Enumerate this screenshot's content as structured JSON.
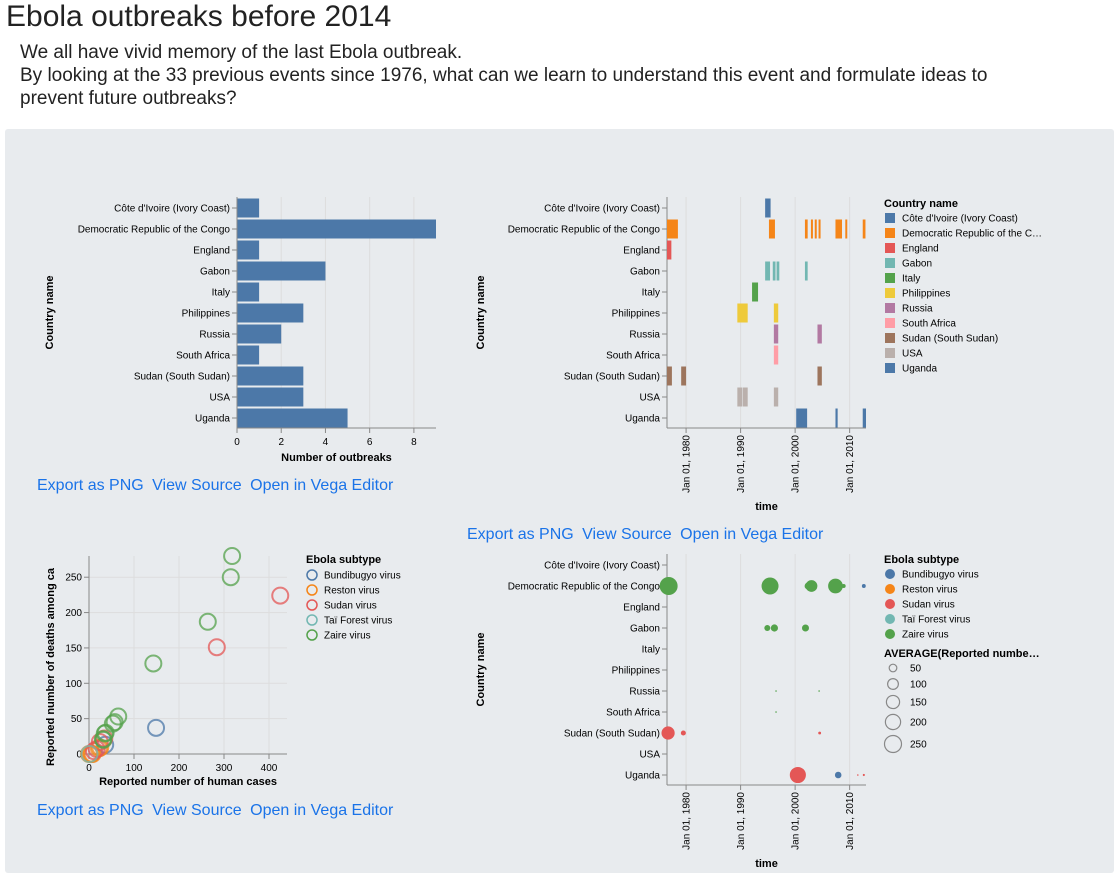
{
  "page": {
    "title": "Ebola outbreaks before 2014",
    "intro": [
      "We all have vivid memory of the last Ebola outbreak.",
      "By looking at the 33 previous events since 1976, what can we learn to understand this event and formulate ideas to",
      "prevent future outbreaks?"
    ]
  },
  "links": {
    "png": "Export as PNG",
    "source": "View Source",
    "editor": "Open in Vega Editor"
  },
  "colors": {
    "bar": "#4c78a8",
    "country": {
      "Côte d'Ivoire (Ivory Coast)": "#4c78a8",
      "Democratic Republic of the Congo": "#f58518",
      "England": "#e45756",
      "Gabon": "#72b7b2",
      "Italy": "#54a24b",
      "Philippines": "#eeca3b",
      "Russia": "#b279a2",
      "South Africa": "#ff9da6",
      "Sudan (South Sudan)": "#9d755d",
      "USA": "#bab0ac",
      "Uganda": "#4c78a8"
    },
    "subtype": {
      "Bundibugyo virus": "#4c78a8",
      "Reston virus": "#f58518",
      "Sudan virus": "#e45756",
      "Taï Forest virus": "#72b7b2",
      "Zaire virus": "#54a24b"
    }
  },
  "chart_data": [
    {
      "type": "bar",
      "orientation": "horizontal",
      "categories": [
        "Côte d'Ivoire (Ivory Coast)",
        "Democratic Republic of the Congo",
        "England",
        "Gabon",
        "Italy",
        "Philippines",
        "Russia",
        "South Africa",
        "Sudan (South Sudan)",
        "USA",
        "Uganda"
      ],
      "values": [
        1,
        9,
        1,
        4,
        1,
        3,
        2,
        1,
        3,
        3,
        5
      ],
      "xlabel": "Number of outbreaks",
      "ylabel": "Country name",
      "xticks": [
        "0",
        "2",
        "4",
        "6",
        "8"
      ],
      "xlim": [
        0,
        9
      ]
    },
    {
      "type": "bar",
      "subtype": "timeline",
      "categories": [
        "Côte d'Ivoire (Ivory Coast)",
        "Democratic Republic of the Congo",
        "England",
        "Gabon",
        "Italy",
        "Philippines",
        "Russia",
        "South Africa",
        "Sudan (South Sudan)",
        "USA",
        "Uganda"
      ],
      "xlim": [
        1976.5,
        2013.0
      ],
      "xticks": [
        {
          "label": "Jan 01, 1980",
          "value": 1980
        },
        {
          "label": "Jan 01, 1990",
          "value": 1990
        },
        {
          "label": "Jan 01, 2000",
          "value": 2000
        },
        {
          "label": "Jan 01, 2010",
          "value": 2010
        }
      ],
      "xlabel": "time",
      "ylabel": "Country name",
      "legend_title": "Country name",
      "legend_labels": [
        "Côte d'Ivoire (Ivory Coast)",
        "Democratic Republic of the C…",
        "England",
        "Gabon",
        "Italy",
        "Philippines",
        "Russia",
        "South Africa",
        "Sudan (South Sudan)",
        "USA",
        "Uganda"
      ],
      "legend_position": "right",
      "events": [
        {
          "country": "Côte d'Ivoire (Ivory Coast)",
          "start": 1994.5,
          "end": 1995.5
        },
        {
          "country": "Democratic Republic of the Congo",
          "start": 1976.5,
          "end": 1978.5
        },
        {
          "country": "Democratic Republic of the Congo",
          "start": 1995.2,
          "end": 1996.3
        },
        {
          "country": "Democratic Republic of the Congo",
          "start": 2001.8,
          "end": 2002.3
        },
        {
          "country": "Democratic Republic of the Congo",
          "start": 2002.9,
          "end": 2003.2
        },
        {
          "country": "Democratic Republic of the Congo",
          "start": 2003.6,
          "end": 2003.9
        },
        {
          "country": "Democratic Republic of the Congo",
          "start": 2004.3,
          "end": 2004.6
        },
        {
          "country": "Democratic Republic of the Congo",
          "start": 2007.4,
          "end": 2008.6
        },
        {
          "country": "Democratic Republic of the Congo",
          "start": 2009.2,
          "end": 2009.5
        },
        {
          "country": "Democratic Republic of the Congo",
          "start": 2012.4,
          "end": 2012.9
        },
        {
          "country": "England",
          "start": 1976.5,
          "end": 1977.3
        },
        {
          "country": "Gabon",
          "start": 1994.5,
          "end": 1995.4
        },
        {
          "country": "Gabon",
          "start": 1995.9,
          "end": 1996.4
        },
        {
          "country": "Gabon",
          "start": 1996.6,
          "end": 1997.1
        },
        {
          "country": "Gabon",
          "start": 2001.8,
          "end": 2002.3
        },
        {
          "country": "Italy",
          "start": 1992.1,
          "end": 1993.2
        },
        {
          "country": "Philippines",
          "start": 1989.4,
          "end": 1991.3
        },
        {
          "country": "Philippines",
          "start": 1996.1,
          "end": 1996.9
        },
        {
          "country": "Russia",
          "start": 1996.1,
          "end": 1996.9
        },
        {
          "country": "Russia",
          "start": 2004.1,
          "end": 2004.9
        },
        {
          "country": "South Africa",
          "start": 1996.1,
          "end": 1996.9
        },
        {
          "country": "Sudan (South Sudan)",
          "start": 1976.5,
          "end": 1977.4
        },
        {
          "country": "Sudan (South Sudan)",
          "start": 1979.1,
          "end": 1980.0
        },
        {
          "country": "Sudan (South Sudan)",
          "start": 2004.1,
          "end": 2004.9
        },
        {
          "country": "USA",
          "start": 1989.4,
          "end": 1990.3
        },
        {
          "country": "USA",
          "start": 1990.4,
          "end": 1991.3
        },
        {
          "country": "USA",
          "start": 1996.1,
          "end": 1996.9
        },
        {
          "country": "Uganda",
          "start": 2000.2,
          "end": 2002.2
        },
        {
          "country": "Uganda",
          "start": 2007.4,
          "end": 2007.8
        },
        {
          "country": "Uganda",
          "start": 2012.4,
          "end": 2013.0
        }
      ]
    },
    {
      "type": "scatter",
      "xlabel": "Reported number of human cases",
      "ylabel": "Reported number of deaths among ca",
      "xlim": [
        0,
        440
      ],
      "ylim": [
        0,
        280
      ],
      "xticks": [
        "0",
        "100",
        "200",
        "300",
        "400"
      ],
      "yticks": [
        "0",
        "50",
        "100",
        "150",
        "200",
        "250"
      ],
      "legend_title": "Ebola subtype",
      "legend_position": "right",
      "series": [
        {
          "name": "Bundibugyo virus",
          "points": [
            [
              149,
              37
            ],
            [
              36,
              13
            ]
          ]
        },
        {
          "name": "Reston virus",
          "points": [
            [
              0,
              0
            ],
            [
              4,
              0
            ],
            [
              6,
              0
            ],
            [
              8,
              0
            ],
            [
              22,
              8
            ],
            [
              25,
              9
            ]
          ]
        },
        {
          "name": "Sudan virus",
          "points": [
            [
              425,
              224
            ],
            [
              284,
              151
            ],
            [
              34,
              22
            ],
            [
              17,
              7
            ],
            [
              24,
              17
            ],
            [
              11,
              4
            ]
          ]
        },
        {
          "name": "Taï Forest virus",
          "points": [
            [
              1,
              0
            ]
          ]
        },
        {
          "name": "Zaire virus",
          "points": [
            [
              318,
              280
            ],
            [
              315,
              250
            ],
            [
              264,
              187
            ],
            [
              143,
              128
            ],
            [
              65,
              53
            ],
            [
              57,
              45
            ],
            [
              53,
              43
            ],
            [
              37,
              30
            ],
            [
              35,
              29
            ],
            [
              32,
              20
            ],
            [
              31,
              21
            ]
          ]
        }
      ]
    },
    {
      "type": "scatter",
      "subtype": "bubble-timeline",
      "categories": [
        "Côte d'Ivoire (Ivory Coast)",
        "Democratic Republic of the Congo",
        "England",
        "Gabon",
        "Italy",
        "Philippines",
        "Russia",
        "South Africa",
        "Sudan (South Sudan)",
        "USA",
        "Uganda"
      ],
      "xlim": [
        1976.5,
        2013.0
      ],
      "xticks": [
        {
          "label": "Jan 01, 1980",
          "value": 1980
        },
        {
          "label": "Jan 01, 1990",
          "value": 1990
        },
        {
          "label": "Jan 01, 2000",
          "value": 2000
        },
        {
          "label": "Jan 01, 2010",
          "value": 2010
        }
      ],
      "xlabel": "time",
      "ylabel": "Country name",
      "legend_title": "Ebola subtype",
      "legend_labels": [
        "Bundibugyo virus",
        "Reston virus",
        "Sudan virus",
        "Taï Forest virus",
        "Zaire virus"
      ],
      "size_legend_title": "AVERAGE(Reported numbe…",
      "size_legend_values": [
        50,
        100,
        150,
        200,
        250
      ],
      "legend_position": "right",
      "points": [
        {
          "country": "Democratic Republic of the Congo",
          "time": 1976.8,
          "subtype": "Zaire virus",
          "value": 280
        },
        {
          "country": "Democratic Republic of the Congo",
          "time": 1995.4,
          "subtype": "Zaire virus",
          "value": 250
        },
        {
          "country": "Democratic Republic of the Congo",
          "time": 2002.4,
          "subtype": "Zaire virus",
          "value": 45
        },
        {
          "country": "Democratic Republic of the Congo",
          "time": 2003.0,
          "subtype": "Zaire virus",
          "value": 120
        },
        {
          "country": "Democratic Republic of the Congo",
          "time": 2003.4,
          "subtype": "Zaire virus",
          "value": 30
        },
        {
          "country": "Democratic Republic of the Congo",
          "time": 2007.4,
          "subtype": "Zaire virus",
          "value": 187
        },
        {
          "country": "Democratic Republic of the Congo",
          "time": 2008.9,
          "subtype": "Zaire virus",
          "value": 14
        },
        {
          "country": "Democratic Republic of the Congo",
          "time": 2012.6,
          "subtype": "Bundibugyo virus",
          "value": 13
        },
        {
          "country": "Gabon",
          "time": 1994.9,
          "subtype": "Zaire virus",
          "value": 31
        },
        {
          "country": "Gabon",
          "time": 1996.2,
          "subtype": "Zaire virus",
          "value": 45
        },
        {
          "country": "Gabon",
          "time": 2001.9,
          "subtype": "Zaire virus",
          "value": 43
        },
        {
          "country": "Russia",
          "time": 1996.5,
          "subtype": "Zaire virus",
          "value": 1
        },
        {
          "country": "Russia",
          "time": 2004.4,
          "subtype": "Zaire virus",
          "value": 1
        },
        {
          "country": "South Africa",
          "time": 1996.5,
          "subtype": "Zaire virus",
          "value": 1
        },
        {
          "country": "Sudan (South Sudan)",
          "time": 1976.7,
          "subtype": "Sudan virus",
          "value": 151
        },
        {
          "country": "Sudan (South Sudan)",
          "time": 1979.5,
          "subtype": "Sudan virus",
          "value": 22
        },
        {
          "country": "Sudan (South Sudan)",
          "time": 2004.5,
          "subtype": "Sudan virus",
          "value": 7
        },
        {
          "country": "Uganda",
          "time": 2000.5,
          "subtype": "Sudan virus",
          "value": 224
        },
        {
          "country": "Uganda",
          "time": 2007.9,
          "subtype": "Bundibugyo virus",
          "value": 37
        },
        {
          "country": "Uganda",
          "time": 2011.5,
          "subtype": "Sudan virus",
          "value": 1
        },
        {
          "country": "Uganda",
          "time": 2012.6,
          "subtype": "Sudan virus",
          "value": 4
        }
      ]
    }
  ]
}
